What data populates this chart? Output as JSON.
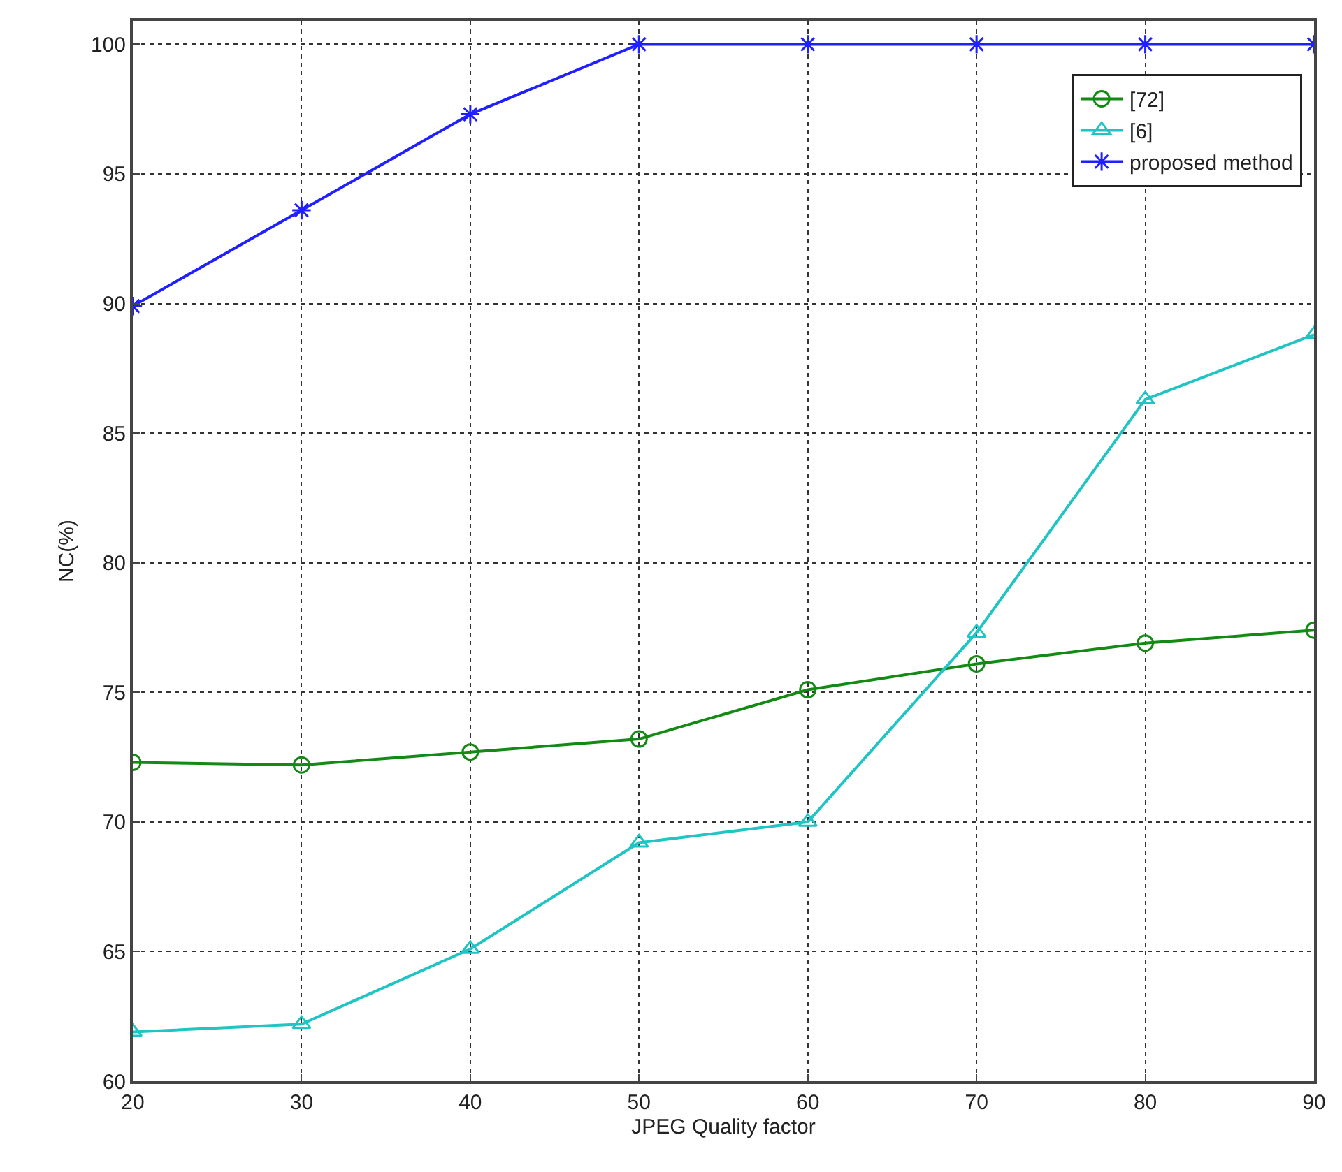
{
  "chart_data": {
    "type": "line",
    "xlabel": "JPEG Quality factor",
    "ylabel": "NC(%)",
    "x": [
      20,
      30,
      40,
      50,
      60,
      70,
      80,
      90
    ],
    "series": [
      {
        "name": "[72]",
        "color": "#138a13",
        "marker": "circle",
        "values": [
          72.3,
          72.2,
          72.7,
          73.2,
          75.1,
          76.1,
          76.9,
          77.4
        ]
      },
      {
        "name": "[6]",
        "color": "#1fc4c4",
        "marker": "triangle",
        "values": [
          61.9,
          62.2,
          65.1,
          69.2,
          70.0,
          77.3,
          86.3,
          88.8
        ]
      },
      {
        "name": "proposed method",
        "color": "#1f1fff",
        "marker": "cross",
        "values": [
          89.9,
          93.6,
          97.3,
          100,
          100,
          100,
          100,
          100
        ]
      }
    ],
    "xlim": [
      20,
      90
    ],
    "xticks": [
      20,
      30,
      40,
      50,
      60,
      70,
      80,
      90
    ],
    "ylim": [
      60,
      100.9
    ],
    "yticks": [
      60,
      65,
      70,
      75,
      80,
      85,
      90,
      95,
      100
    ],
    "grid": true,
    "legend": "top right",
    "line_style": "solid"
  }
}
